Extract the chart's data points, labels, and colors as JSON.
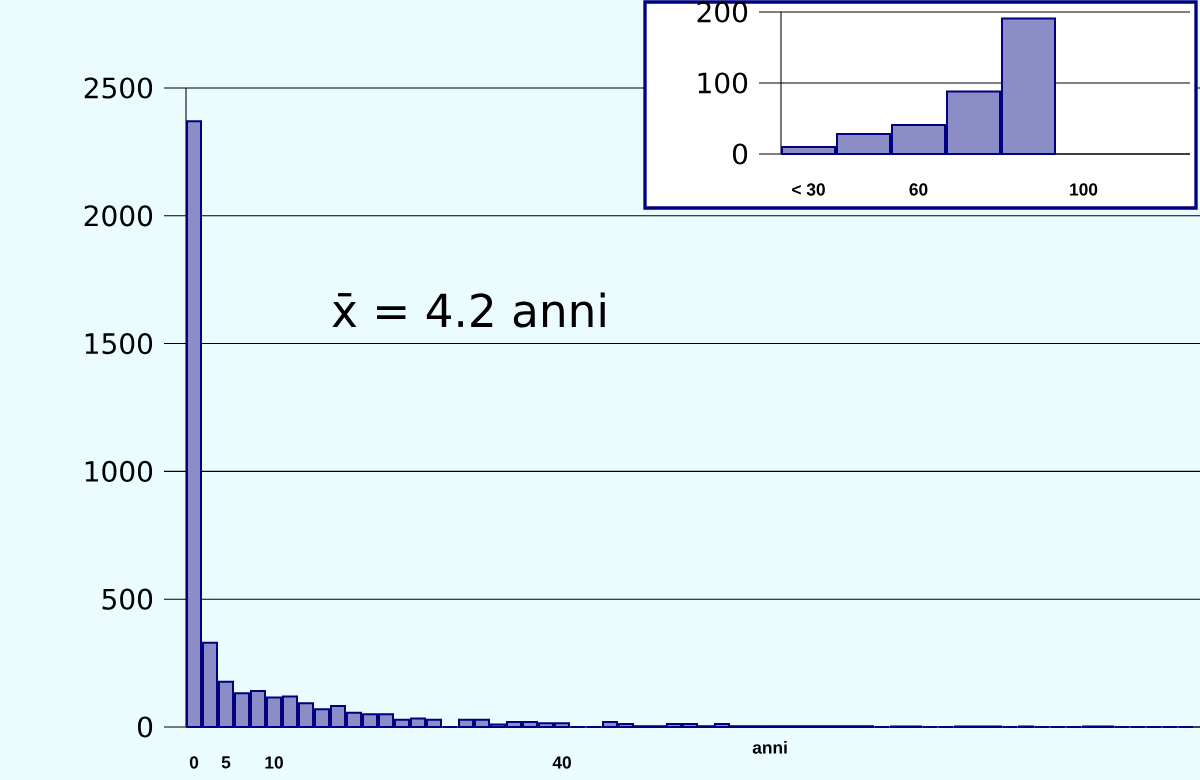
{
  "chart_data": [
    {
      "type": "bar",
      "categories": [
        "0",
        null,
        "5",
        null,
        null,
        "10",
        null,
        null,
        null,
        null,
        null,
        null,
        null,
        null,
        null,
        null,
        null,
        null,
        null,
        null,
        null,
        null,
        null,
        "40",
        null,
        null,
        null,
        null,
        null,
        null,
        null,
        null,
        null,
        null,
        null,
        null,
        null,
        null,
        null,
        null,
        null,
        null,
        null,
        null,
        null,
        null,
        null,
        null,
        null,
        null,
        null,
        null,
        null,
        null,
        null,
        null,
        null,
        null,
        null,
        null,
        null,
        null,
        null
      ],
      "values": [
        2370,
        330,
        177,
        132,
        141,
        115,
        119,
        93,
        69,
        82,
        56,
        50,
        50,
        28,
        33,
        28,
        0,
        28,
        28,
        10,
        20,
        20,
        15,
        15,
        0,
        0,
        20,
        12,
        3,
        3,
        12,
        12,
        3,
        12,
        3,
        3,
        3,
        3,
        3,
        3,
        3,
        3,
        3,
        0,
        2,
        2,
        0,
        0,
        2,
        2,
        2,
        0,
        2,
        0,
        0,
        0,
        2,
        2,
        0,
        0,
        0,
        0,
        0
      ],
      "color": "#000080",
      "ylim": [
        0,
        2500
      ],
      "yticks": [
        0,
        500,
        1000,
        1500,
        2000,
        2500
      ],
      "grid": "y",
      "xlabel": "anni",
      "annotations": [
        "x̄ = 4.2 anni"
      ]
    },
    {
      "type": "bar",
      "categories": [
        "< 30",
        null,
        "60",
        null,
        null,
        "100",
        null
      ],
      "values": [
        10,
        28,
        41,
        88,
        191,
        null,
        null
      ],
      "color": "#000080",
      "ylim": [
        0,
        200
      ],
      "yticks": [
        0,
        100,
        200
      ],
      "grid": "y"
    }
  ]
}
